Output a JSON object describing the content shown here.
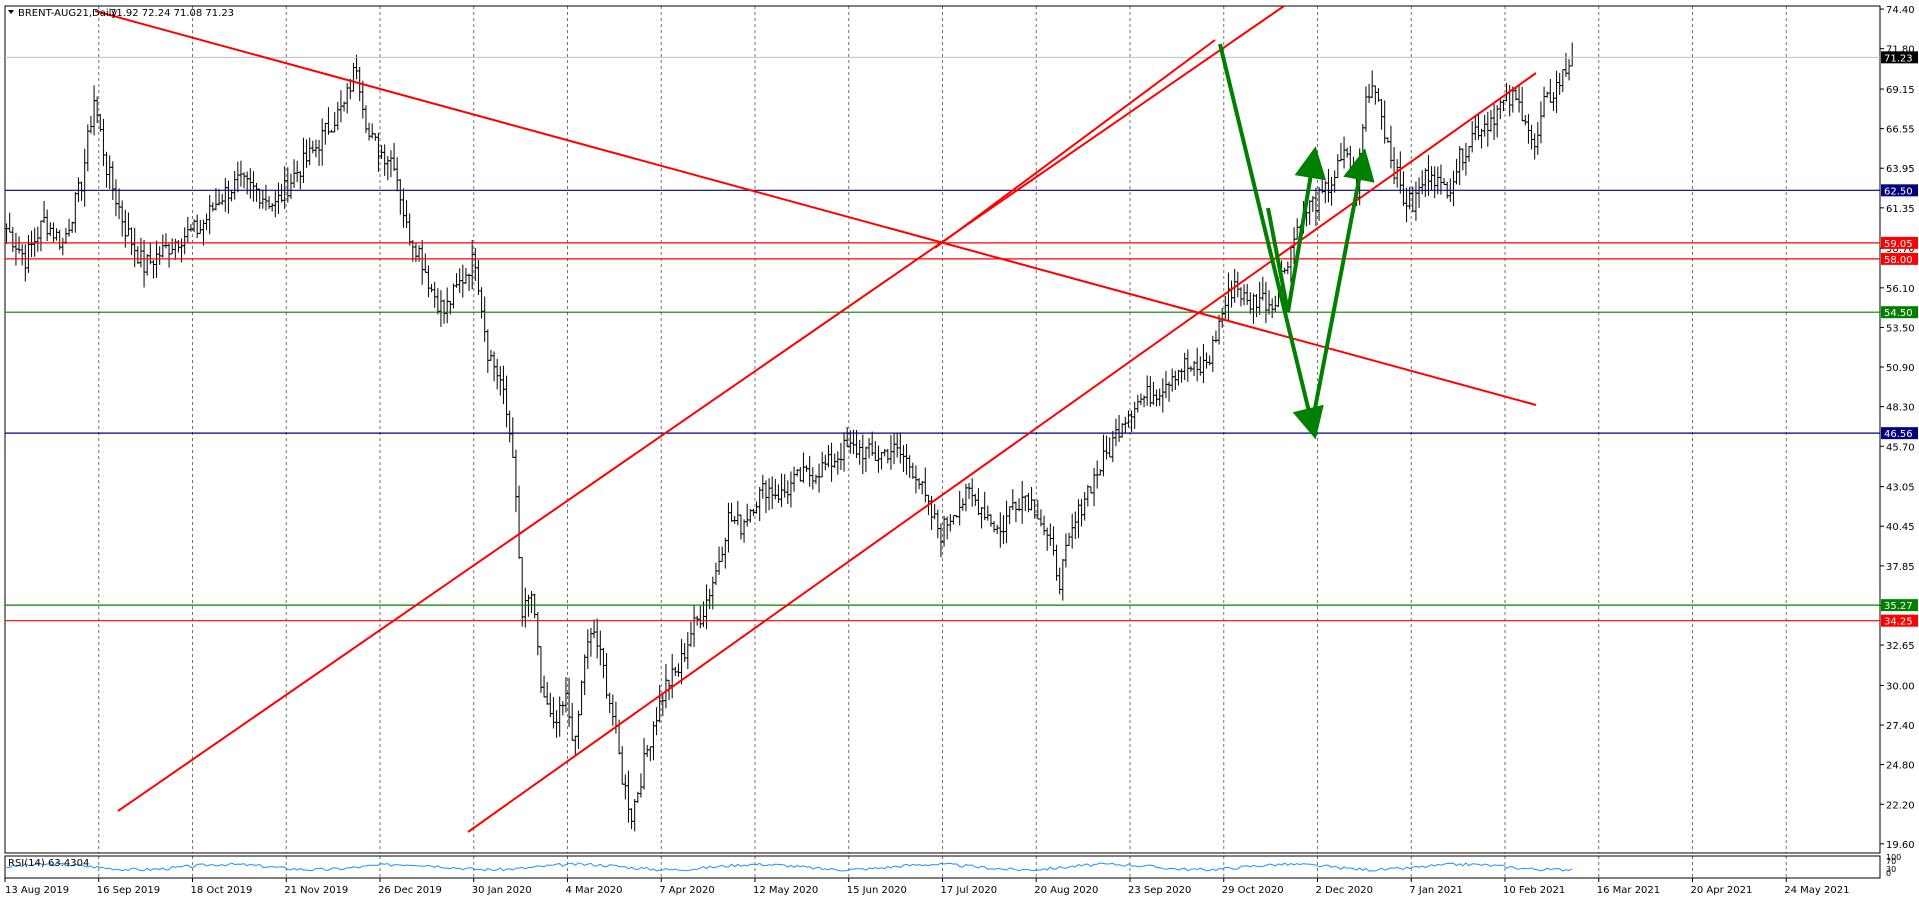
{
  "header": {
    "symbol_label": "BRENT-AUG21,Daily",
    "ohlc_label": "71.92 72.24 71.08 71.23"
  },
  "rsi": {
    "label": "RSI(14) 63.4304",
    "scale": [
      "100",
      "70",
      "30",
      "0"
    ]
  },
  "chart_data": {
    "type": "candlestick",
    "symbol": "BRENT-AUG21",
    "timeframe": "Daily",
    "last_close": 71.23,
    "ylim": [
      19.0,
      74.6
    ],
    "y_ticks": [
      74.4,
      71.8,
      69.15,
      66.55,
      63.95,
      61.35,
      58.7,
      56.1,
      53.5,
      50.9,
      48.3,
      45.7,
      43.05,
      40.45,
      37.85,
      35.25,
      32.65,
      30.0,
      27.4,
      24.8,
      22.2,
      19.6
    ],
    "x_labels": [
      "13 Aug 2019",
      "16 Sep 2019",
      "18 Oct 2019",
      "21 Nov 2019",
      "26 Dec 2019",
      "30 Jan 2020",
      "4 Mar 2020",
      "7 Apr 2020",
      "12 May 2020",
      "15 Jun 2020",
      "17 Jul 2020",
      "20 Aug 2020",
      "23 Sep 2020",
      "29 Oct 2020",
      "2 Dec 2020",
      "7 Jan 2021",
      "10 Feb 2021",
      "16 Mar 2021",
      "20 Apr 2021",
      "24 May 2021"
    ],
    "price_path": [
      [
        0,
        60.0
      ],
      [
        6,
        58.0
      ],
      [
        12,
        60.5
      ],
      [
        18,
        59.0
      ],
      [
        24,
        63.0
      ],
      [
        28,
        68.5
      ],
      [
        32,
        64.0
      ],
      [
        38,
        60.0
      ],
      [
        44,
        57.5
      ],
      [
        50,
        58.5
      ],
      [
        56,
        59.5
      ],
      [
        62,
        60.0
      ],
      [
        68,
        62.0
      ],
      [
        74,
        63.0
      ],
      [
        80,
        62.5
      ],
      [
        86,
        61.5
      ],
      [
        92,
        63.5
      ],
      [
        98,
        65.0
      ],
      [
        104,
        67.0
      ],
      [
        108,
        68.0
      ],
      [
        112,
        70.8
      ],
      [
        116,
        66.0
      ],
      [
        120,
        65.0
      ],
      [
        124,
        64.5
      ],
      [
        128,
        60.0
      ],
      [
        132,
        58.5
      ],
      [
        136,
        56.0
      ],
      [
        140,
        54.5
      ],
      [
        144,
        56.0
      ],
      [
        148,
        57.5
      ],
      [
        150,
        58.0
      ],
      [
        154,
        52.0
      ],
      [
        158,
        50.0
      ],
      [
        162,
        45.5
      ],
      [
        165,
        34.5
      ],
      [
        168,
        36.0
      ],
      [
        171,
        30.0
      ],
      [
        175,
        27.0
      ],
      [
        179,
        29.0
      ],
      [
        182,
        26.0
      ],
      [
        185,
        32.0
      ],
      [
        188,
        33.5
      ],
      [
        191,
        31.0
      ],
      [
        194,
        28.0
      ],
      [
        197,
        24.0
      ],
      [
        200,
        21.5
      ],
      [
        203,
        24.0
      ],
      [
        207,
        27.5
      ],
      [
        211,
        30.0
      ],
      [
        215,
        31.0
      ],
      [
        219,
        33.5
      ],
      [
        223,
        35.0
      ],
      [
        227,
        37.5
      ],
      [
        231,
        41.0
      ],
      [
        235,
        40.5
      ],
      [
        239,
        42.0
      ],
      [
        243,
        43.0
      ],
      [
        248,
        42.5
      ],
      [
        253,
        43.5
      ],
      [
        258,
        44.0
      ],
      [
        263,
        44.5
      ],
      [
        268,
        45.5
      ],
      [
        273,
        45.5
      ],
      [
        278,
        45.0
      ],
      [
        283,
        45.5
      ],
      [
        287,
        45.0
      ],
      [
        291,
        44.0
      ],
      [
        295,
        41.5
      ],
      [
        299,
        40.0
      ],
      [
        303,
        41.5
      ],
      [
        308,
        42.5
      ],
      [
        313,
        41.5
      ],
      [
        318,
        40.0
      ],
      [
        322,
        42.0
      ],
      [
        326,
        42.5
      ],
      [
        330,
        41.5
      ],
      [
        334,
        39.0
      ],
      [
        337,
        37.0
      ],
      [
        341,
        40.0
      ],
      [
        345,
        42.5
      ],
      [
        349,
        44.0
      ],
      [
        353,
        45.5
      ],
      [
        357,
        47.5
      ],
      [
        361,
        48.5
      ],
      [
        365,
        49.0
      ],
      [
        369,
        49.5
      ],
      [
        373,
        50.5
      ],
      [
        377,
        51.0
      ],
      [
        381,
        50.5
      ],
      [
        385,
        51.5
      ],
      [
        389,
        54.5
      ],
      [
        393,
        56.5
      ],
      [
        397,
        55.0
      ],
      [
        401,
        55.5
      ],
      [
        405,
        55.0
      ],
      [
        409,
        57.5
      ],
      [
        413,
        60.0
      ],
      [
        417,
        61.5
      ],
      [
        421,
        62.0
      ],
      [
        425,
        63.5
      ],
      [
        429,
        65.0
      ],
      [
        432,
        62.5
      ],
      [
        435,
        68.5
      ],
      [
        438,
        69.5
      ],
      [
        441,
        66.5
      ],
      [
        444,
        64.0
      ],
      [
        447,
        62.0
      ],
      [
        450,
        61.5
      ],
      [
        453,
        63.0
      ],
      [
        456,
        64.0
      ],
      [
        459,
        62.5
      ],
      [
        462,
        63.0
      ],
      [
        466,
        65.0
      ],
      [
        470,
        66.5
      ],
      [
        474,
        67.0
      ],
      [
        478,
        68.0
      ],
      [
        482,
        68.5
      ],
      [
        486,
        67.5
      ],
      [
        489,
        65.0
      ],
      [
        492,
        68.0
      ],
      [
        495,
        69.0
      ],
      [
        498,
        70.0
      ],
      [
        501,
        71.23
      ]
    ],
    "horizontal_levels": [
      {
        "price": 62.5,
        "label": "62.50",
        "color": "#000080"
      },
      {
        "price": 59.05,
        "label": "59.05",
        "color": "#ff0000"
      },
      {
        "price": 58.0,
        "label": "58.00",
        "color": "#ff0000"
      },
      {
        "price": 54.5,
        "label": "54.50",
        "color": "#008000"
      },
      {
        "price": 46.56,
        "label": "46.56",
        "color": "#000080"
      },
      {
        "price": 35.27,
        "label": "35.27",
        "color": "#008000"
      },
      {
        "price": 34.25,
        "label": "34.25",
        "color": "#ff0000"
      }
    ],
    "current_price_tag": {
      "price": 71.23,
      "label": "71.23",
      "color": "#000000"
    },
    "colors": {
      "candles": "#000000",
      "trendlines": "#ff0000",
      "projection_arrows": "#008000",
      "rsi_line": "#1e90ff",
      "background": "#ffffff"
    }
  }
}
